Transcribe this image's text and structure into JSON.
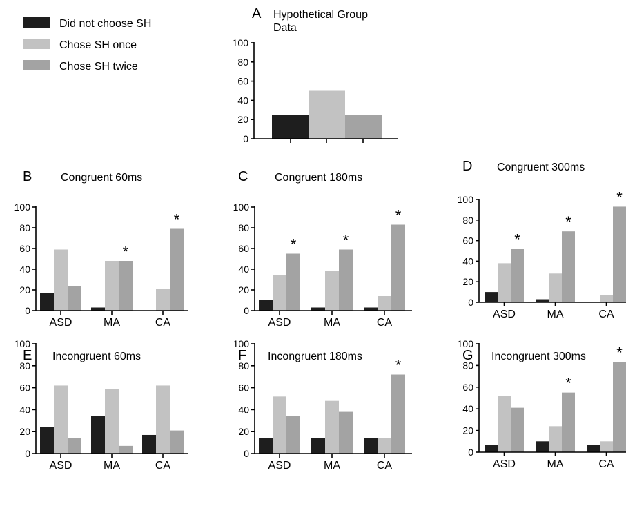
{
  "colors": {
    "did_not_choose": "#1e1e1e",
    "chose_once": "#c2c2c2",
    "chose_twice": "#a3a3a3"
  },
  "legend": [
    {
      "label": "Did not choose SH",
      "color": "#1e1e1e"
    },
    {
      "label": "Chose SH once",
      "color": "#c2c2c2"
    },
    {
      "label": "Chose SH twice",
      "color": "#a3a3a3"
    }
  ],
  "chart_data": [
    {
      "panel": "A",
      "type": "bar",
      "title": "Hypothetical Group Data",
      "categories": [
        ""
      ],
      "series": [
        {
          "name": "Did not choose SH",
          "values": [
            25
          ]
        },
        {
          "name": "Chose SH once",
          "values": [
            50
          ]
        },
        {
          "name": "Chose SH twice",
          "values": [
            25
          ]
        }
      ],
      "ylim": [
        0,
        100
      ],
      "yticks": [
        0,
        20,
        40,
        60,
        80,
        100
      ],
      "significance": []
    },
    {
      "panel": "B",
      "type": "bar",
      "title": "Congruent 60ms",
      "categories": [
        "ASD",
        "MA",
        "CA"
      ],
      "series": [
        {
          "name": "Did not choose SH",
          "values": [
            17,
            3,
            0
          ]
        },
        {
          "name": "Chose SH once",
          "values": [
            59,
            48,
            21
          ]
        },
        {
          "name": "Chose SH twice",
          "values": [
            24,
            48,
            79
          ]
        }
      ],
      "ylim": [
        0,
        100
      ],
      "yticks": [
        0,
        20,
        40,
        60,
        80,
        100
      ],
      "significance": [
        {
          "category": 1,
          "label": "*"
        },
        {
          "category": 2,
          "label": "*"
        }
      ]
    },
    {
      "panel": "C",
      "type": "bar",
      "title": "Congruent 180ms",
      "categories": [
        "ASD",
        "MA",
        "CA"
      ],
      "series": [
        {
          "name": "Did not choose SH",
          "values": [
            10,
            3,
            3
          ]
        },
        {
          "name": "Chose SH once",
          "values": [
            34,
            38,
            14
          ]
        },
        {
          "name": "Chose SH twice",
          "values": [
            55,
            59,
            83
          ]
        }
      ],
      "ylim": [
        0,
        100
      ],
      "yticks": [
        0,
        20,
        40,
        60,
        80,
        100
      ],
      "significance": [
        {
          "category": 0,
          "label": "*"
        },
        {
          "category": 1,
          "label": "*"
        },
        {
          "category": 2,
          "label": "*"
        }
      ]
    },
    {
      "panel": "D",
      "type": "bar",
      "title": "Congruent 300ms",
      "categories": [
        "ASD",
        "MA",
        "CA"
      ],
      "series": [
        {
          "name": "Did not choose SH",
          "values": [
            10,
            3,
            0
          ]
        },
        {
          "name": "Chose SH once",
          "values": [
            38,
            28,
            7
          ]
        },
        {
          "name": "Chose SH twice",
          "values": [
            52,
            69,
            93
          ]
        }
      ],
      "ylim": [
        0,
        100
      ],
      "yticks": [
        0,
        20,
        40,
        60,
        80,
        100
      ],
      "significance": [
        {
          "category": 0,
          "label": "*"
        },
        {
          "category": 1,
          "label": "*"
        },
        {
          "category": 2,
          "label": "*"
        }
      ]
    },
    {
      "panel": "E",
      "type": "bar",
      "title": "Incongruent 60ms",
      "categories": [
        "ASD",
        "MA",
        "CA"
      ],
      "series": [
        {
          "name": "Did not choose SH",
          "values": [
            24,
            34,
            17
          ]
        },
        {
          "name": "Chose SH once",
          "values": [
            62,
            59,
            62
          ]
        },
        {
          "name": "Chose SH twice",
          "values": [
            14,
            7,
            21
          ]
        }
      ],
      "ylim": [
        0,
        100
      ],
      "yticks": [
        0,
        20,
        40,
        60,
        80,
        100
      ],
      "significance": []
    },
    {
      "panel": "F",
      "type": "bar",
      "title": "Incongruent 180ms",
      "categories": [
        "ASD",
        "MA",
        "CA"
      ],
      "series": [
        {
          "name": "Did not choose SH",
          "values": [
            14,
            14,
            14
          ]
        },
        {
          "name": "Chose SH once",
          "values": [
            52,
            48,
            14
          ]
        },
        {
          "name": "Chose SH twice",
          "values": [
            34,
            38,
            72
          ]
        }
      ],
      "ylim": [
        0,
        100
      ],
      "yticks": [
        0,
        20,
        40,
        60,
        80,
        100
      ],
      "significance": [
        {
          "category": 2,
          "label": "*"
        }
      ]
    },
    {
      "panel": "G",
      "type": "bar",
      "title": "Incongruent 300ms",
      "categories": [
        "ASD",
        "MA",
        "CA"
      ],
      "series": [
        {
          "name": "Did not choose SH",
          "values": [
            7,
            10,
            7
          ]
        },
        {
          "name": "Chose SH once",
          "values": [
            52,
            24,
            10
          ]
        },
        {
          "name": "Chose SH twice",
          "values": [
            41,
            55,
            83
          ]
        }
      ],
      "ylim": [
        0,
        100
      ],
      "yticks": [
        0,
        20,
        40,
        60,
        80,
        100
      ],
      "significance": [
        {
          "category": 1,
          "label": "*"
        },
        {
          "category": 2,
          "label": "*"
        }
      ]
    }
  ]
}
